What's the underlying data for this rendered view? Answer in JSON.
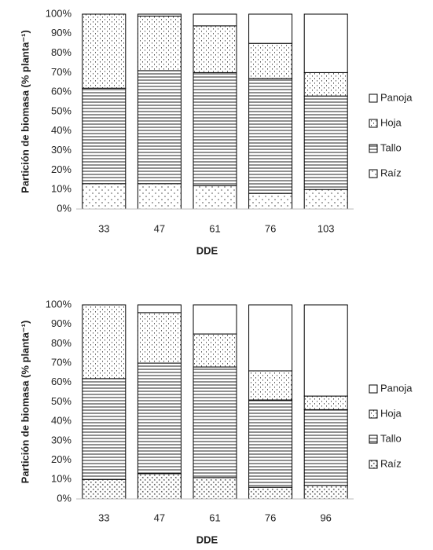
{
  "chart_data": [
    {
      "type": "stacked_bar",
      "y_label": "Partición  de biomasa (% planta⁻¹)",
      "x_label": "DDE",
      "categories": [
        "33",
        "47",
        "61",
        "76",
        "103"
      ],
      "ylim": [
        0,
        100
      ],
      "yticks": [
        {
          "value": 0,
          "label": "0%"
        },
        {
          "value": 10,
          "label": "10%"
        },
        {
          "value": 20,
          "label": "20%"
        },
        {
          "value": 30,
          "label": "30%"
        },
        {
          "value": 40,
          "label": "40%"
        },
        {
          "value": 50,
          "label": "50%"
        },
        {
          "value": 60,
          "label": "60%"
        },
        {
          "value": 70,
          "label": "70%"
        },
        {
          "value": 80,
          "label": "80%"
        },
        {
          "value": 90,
          "label": "90%"
        },
        {
          "value": 100,
          "label": "100%"
        }
      ],
      "legend": "right",
      "series": [
        {
          "name": "Raíz",
          "color": "#ffffff",
          "pattern": "dots",
          "values": [
            13,
            13,
            12,
            8,
            10
          ]
        },
        {
          "name": "Tallo",
          "color": "#ffffff",
          "pattern": "hlines",
          "values": [
            49,
            58,
            58,
            59,
            48
          ]
        },
        {
          "name": "Hoja",
          "color": "#ffffff",
          "pattern": "dashes",
          "values": [
            38,
            28,
            24,
            18,
            12
          ]
        },
        {
          "name": "Panoja",
          "color": "#ffffff",
          "pattern": "none",
          "values": [
            0,
            1,
            6,
            15,
            30
          ]
        }
      ]
    },
    {
      "type": "stacked_bar",
      "y_label": "Partición de biomasa (% planta⁻¹)",
      "x_label": "DDE",
      "categories": [
        "33",
        "47",
        "61",
        "76",
        "96"
      ],
      "ylim": [
        0,
        100
      ],
      "yticks": [
        {
          "value": 0,
          "label": "0%"
        },
        {
          "value": 10,
          "label": "10%"
        },
        {
          "value": 20,
          "label": "20%"
        },
        {
          "value": 30,
          "label": "30%"
        },
        {
          "value": 40,
          "label": "40%"
        },
        {
          "value": 50,
          "label": "50%"
        },
        {
          "value": 60,
          "label": "60%"
        },
        {
          "value": 70,
          "label": "70%"
        },
        {
          "value": 80,
          "label": "80%"
        },
        {
          "value": 90,
          "label": "90%"
        },
        {
          "value": 100,
          "label": "100%"
        }
      ],
      "legend": "right",
      "series": [
        {
          "name": "Raíz",
          "color": "#ffffff",
          "pattern": "cross",
          "values": [
            10,
            13,
            11,
            6,
            7
          ]
        },
        {
          "name": "Tallo",
          "color": "#ffffff",
          "pattern": "hlines",
          "values": [
            52,
            57,
            57,
            45,
            39
          ]
        },
        {
          "name": "Hoja",
          "color": "#ffffff",
          "pattern": "dashes",
          "values": [
            38,
            26,
            17,
            15,
            7
          ]
        },
        {
          "name": "Panoja",
          "color": "#ffffff",
          "pattern": "none",
          "values": [
            0,
            4,
            15,
            34,
            47
          ]
        }
      ]
    }
  ]
}
